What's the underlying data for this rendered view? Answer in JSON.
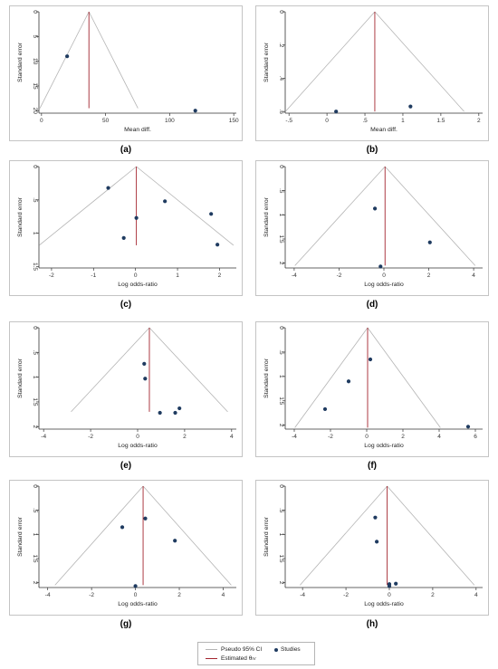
{
  "colors": {
    "ci": "#b4b4b4",
    "estimate": "#a3242e",
    "study": "#1f3b60",
    "axis": "#333333"
  },
  "legend": {
    "ci_label": "Pseudo 95% CI",
    "estimate_label": "Estimated θ",
    "estimate_subscript": "IV",
    "studies_label": "Studies"
  },
  "chart_data": [
    {
      "type": "scatter",
      "panel": "(a)",
      "xlabel": "Mean diff.",
      "ylabel": "Standard error",
      "xlim": [
        -2,
        152
      ],
      "ylim": [
        0,
        20.5
      ],
      "xticks": [
        0,
        50,
        100,
        150
      ],
      "xticklabels": [
        "0",
        "50",
        "100",
        "150"
      ],
      "yticks": [
        0,
        5,
        10,
        15,
        20
      ],
      "yticklabels": [
        "0",
        "5",
        "10",
        "15",
        "20"
      ],
      "estimate": 37,
      "funnel_se_max": 19.5,
      "points": [
        {
          "x": 20,
          "y": 9
        },
        {
          "x": 120,
          "y": 20
        }
      ]
    },
    {
      "type": "scatter",
      "panel": "(b)",
      "xlabel": "Mean diff.",
      "ylabel": "Standard error",
      "xlim": [
        -0.55,
        2.05
      ],
      "ylim": [
        0,
        0.61
      ],
      "xticks": [
        -0.5,
        0,
        0.5,
        1,
        1.5,
        2
      ],
      "xticklabels": [
        "-.5",
        "0",
        ".5",
        "1",
        "1.5",
        "2"
      ],
      "yticks": [
        0,
        0.2,
        0.4,
        0.6
      ],
      "yticklabels": [
        "0",
        ".2",
        ".4",
        ".6"
      ],
      "estimate": 0.63,
      "funnel_se_max": 0.6,
      "points": [
        {
          "x": 0.12,
          "y": 0.6
        },
        {
          "x": 1.1,
          "y": 0.57
        }
      ]
    },
    {
      "type": "scatter",
      "panel": "(c)",
      "xlabel": "Log odds-ratio",
      "ylabel": "Standard error",
      "xlim": [
        -2.3,
        2.4
      ],
      "ylim": [
        0,
        1.52
      ],
      "xticks": [
        -2,
        -1,
        0,
        1,
        2
      ],
      "xticklabels": [
        "-2",
        "-1",
        "0",
        "1",
        "2"
      ],
      "yticks": [
        0,
        0.5,
        1,
        1.5
      ],
      "yticklabels": [
        "0",
        ".5",
        "1",
        "1.5"
      ],
      "estimate": 0.02,
      "funnel_se_max": 1.18,
      "points": [
        {
          "x": -0.65,
          "y": 0.32
        },
        {
          "x": 0.7,
          "y": 0.52
        },
        {
          "x": 0.02,
          "y": 0.77
        },
        {
          "x": 1.8,
          "y": 0.71
        },
        {
          "x": -0.28,
          "y": 1.07
        },
        {
          "x": 1.95,
          "y": 1.17
        }
      ]
    },
    {
      "type": "scatter",
      "panel": "(d)",
      "xlabel": "Log odds-ratio",
      "ylabel": "Standard error",
      "xlim": [
        -4.4,
        4.4
      ],
      "ylim": [
        0,
        2.1
      ],
      "xticks": [
        -4,
        -2,
        0,
        2,
        4
      ],
      "xticklabels": [
        "-4",
        "-2",
        "0",
        "2",
        "4"
      ],
      "yticks": [
        0,
        0.5,
        1,
        1.5,
        2
      ],
      "yticklabels": [
        "0",
        ".5",
        "1",
        "1.5",
        "2"
      ],
      "estimate": 0.05,
      "funnel_se_max": 2.05,
      "points": [
        {
          "x": -0.4,
          "y": 0.87
        },
        {
          "x": 2.05,
          "y": 1.57
        },
        {
          "x": -0.15,
          "y": 2.07
        }
      ]
    },
    {
      "type": "scatter",
      "panel": "(e)",
      "xlabel": "Log odds-ratio",
      "ylabel": "Standard error",
      "xlim": [
        -4.2,
        4.2
      ],
      "ylim": [
        0,
        2.05
      ],
      "xticks": [
        -4,
        -2,
        0,
        2,
        4
      ],
      "xticklabels": [
        "-4",
        "-2",
        "0",
        "2",
        "4"
      ],
      "yticks": [
        0,
        0.5,
        1,
        1.5,
        2
      ],
      "yticklabels": [
        "0",
        ".5",
        "1",
        "1.5",
        "2"
      ],
      "estimate": 0.5,
      "funnel_se_max": 1.7,
      "points": [
        {
          "x": 0.28,
          "y": 0.73
        },
        {
          "x": 0.32,
          "y": 1.03
        },
        {
          "x": 0.95,
          "y": 1.72
        },
        {
          "x": 1.6,
          "y": 1.72
        },
        {
          "x": 1.78,
          "y": 1.63
        }
      ]
    },
    {
      "type": "scatter",
      "panel": "(f)",
      "xlabel": "Log odds-ratio",
      "ylabel": "Standard error",
      "xlim": [
        -4.5,
        6.4
      ],
      "ylim": [
        0,
        2.08
      ],
      "xticks": [
        -4,
        -2,
        0,
        2,
        4,
        6
      ],
      "xticklabels": [
        "-4",
        "-2",
        "0",
        "2",
        "4",
        "6"
      ],
      "yticks": [
        0,
        0.5,
        1,
        1.5,
        2
      ],
      "yticklabels": [
        "0",
        ".5",
        "1",
        "1.5",
        "2"
      ],
      "estimate": 0.05,
      "funnel_se_max": 2.05,
      "points": [
        {
          "x": 0.2,
          "y": 0.65
        },
        {
          "x": -1.0,
          "y": 1.1
        },
        {
          "x": -2.3,
          "y": 1.67
        },
        {
          "x": 5.6,
          "y": 2.03
        }
      ]
    },
    {
      "type": "scatter",
      "panel": "(g)",
      "xlabel": "Log odds-ratio",
      "ylabel": "Standard error",
      "xlim": [
        -4.4,
        4.6
      ],
      "ylim": [
        0,
        2.1
      ],
      "xticks": [
        -4,
        -2,
        0,
        2,
        4
      ],
      "xticklabels": [
        "-4",
        "-2",
        "0",
        "2",
        "4"
      ],
      "yticks": [
        0,
        0.5,
        1,
        1.5,
        2
      ],
      "yticklabels": [
        "0",
        ".5",
        "1",
        "1.5",
        "2"
      ],
      "estimate": 0.35,
      "funnel_se_max": 2.05,
      "points": [
        {
          "x": 0.45,
          "y": 0.67
        },
        {
          "x": -0.6,
          "y": 0.85
        },
        {
          "x": 1.8,
          "y": 1.13
        },
        {
          "x": 0.0,
          "y": 2.07
        }
      ]
    },
    {
      "type": "scatter",
      "panel": "(h)",
      "xlabel": "Log odds-ratio",
      "ylabel": "Standard error",
      "xlim": [
        -4.8,
        4.3
      ],
      "ylim": [
        0,
        2.1
      ],
      "xticks": [
        -4,
        -2,
        0,
        2,
        4
      ],
      "xticklabels": [
        "-4",
        "-2",
        "0",
        "2",
        "4"
      ],
      "yticks": [
        0,
        0.5,
        1,
        1.5,
        2
      ],
      "yticklabels": [
        "0",
        ".5",
        "1",
        "1.5",
        "2"
      ],
      "estimate": -0.1,
      "funnel_se_max": 2.05,
      "points": [
        {
          "x": -0.65,
          "y": 0.65
        },
        {
          "x": -0.58,
          "y": 1.15
        },
        {
          "x": 0.0,
          "y": 2.03
        },
        {
          "x": 0.3,
          "y": 2.02
        },
        {
          "x": 0.0,
          "y": 2.07
        }
      ]
    }
  ]
}
